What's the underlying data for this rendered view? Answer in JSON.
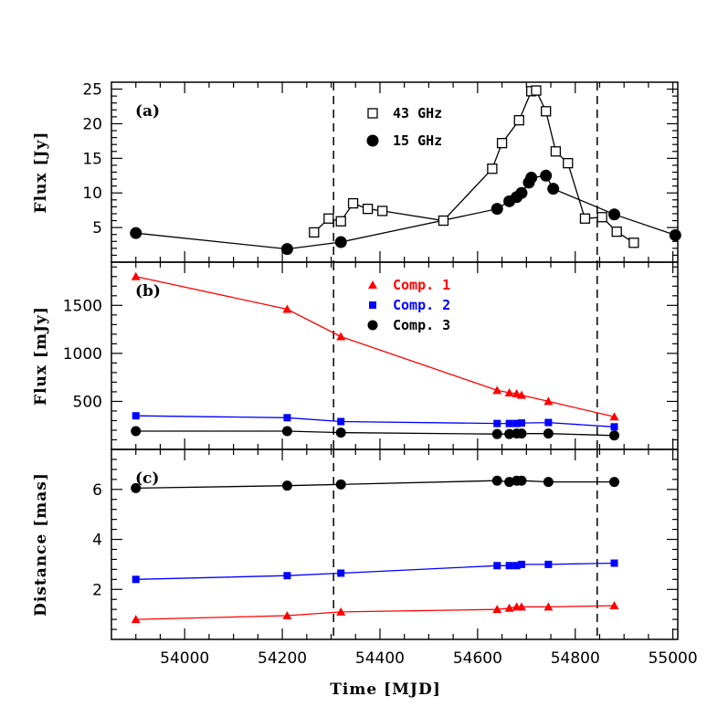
{
  "colors": {
    "black": "#000000",
    "red": "#ff0000",
    "blue": "#0000ff"
  },
  "chart_data": [
    {
      "type": "scatter",
      "panel_label": "(a)",
      "ylabel": "Flux [Jy]",
      "xlim": [
        53850,
        55010
      ],
      "ylim": [
        0,
        26
      ],
      "yticks": [
        5,
        10,
        15,
        20,
        25
      ],
      "legend_placement": "top-center",
      "series": [
        {
          "name": "43 GHz",
          "marker": "square-open",
          "color": "#000000",
          "x": [
            54265,
            54295,
            54320,
            54345,
            54375,
            54405,
            54530,
            54630,
            54650,
            54685,
            54710,
            54720,
            54740,
            54760,
            54785,
            54820,
            54855,
            54885,
            54920
          ],
          "y": [
            4.3,
            6.3,
            5.9,
            8.5,
            7.7,
            7.4,
            6.0,
            13.5,
            17.2,
            20.5,
            24.7,
            24.8,
            21.8,
            16.0,
            14.3,
            6.3,
            6.5,
            4.4,
            2.8
          ]
        },
        {
          "name": "15 GHz",
          "marker": "circle",
          "color": "#000000",
          "x": [
            53900,
            54210,
            54320,
            54640,
            54665,
            54680,
            54690,
            54705,
            54710,
            54740,
            54755,
            54880,
            55005
          ],
          "y": [
            4.2,
            1.9,
            2.9,
            7.7,
            8.8,
            9.4,
            10.0,
            11.5,
            12.2,
            12.5,
            10.6,
            6.9,
            3.9
          ]
        }
      ],
      "vlines": [
        54305,
        54845
      ]
    },
    {
      "type": "line",
      "panel_label": "(b)",
      "ylabel": "Flux [mJy]",
      "xlim": [
        53850,
        55010
      ],
      "ylim": [
        0,
        1950
      ],
      "yticks": [
        500,
        1000,
        1500
      ],
      "legend_placement": "top-center",
      "series": [
        {
          "name": "Comp. 1",
          "marker": "triangle",
          "color": "#ff0000",
          "x": [
            53900,
            54210,
            54320,
            54640,
            54665,
            54680,
            54690,
            54745,
            54880
          ],
          "y": [
            1800,
            1460,
            1175,
            615,
            590,
            580,
            565,
            500,
            340
          ]
        },
        {
          "name": "Comp. 2",
          "marker": "square",
          "color": "#0000ff",
          "x": [
            53900,
            54210,
            54320,
            54640,
            54665,
            54680,
            54690,
            54745,
            54880
          ],
          "y": [
            350,
            330,
            290,
            270,
            270,
            270,
            275,
            280,
            235
          ]
        },
        {
          "name": "Comp. 3",
          "marker": "circle",
          "color": "#000000",
          "x": [
            53900,
            54210,
            54320,
            54640,
            54665,
            54680,
            54690,
            54745,
            54880
          ],
          "y": [
            190,
            190,
            175,
            160,
            160,
            165,
            165,
            165,
            145
          ]
        }
      ],
      "vlines": [
        54305,
        54845
      ]
    },
    {
      "type": "line",
      "panel_label": "(c)",
      "ylabel": "Distance [mas]",
      "xlabel": "Time [MJD]",
      "xlim": [
        53850,
        55010
      ],
      "ylim": [
        0,
        7.6
      ],
      "yticks": [
        2,
        4,
        6
      ],
      "xticks": [
        54000,
        54200,
        54400,
        54600,
        54800,
        55000
      ],
      "series": [
        {
          "name": "Comp. 1",
          "marker": "triangle",
          "color": "#ff0000",
          "x": [
            53900,
            54210,
            54320,
            54640,
            54665,
            54680,
            54690,
            54745,
            54880
          ],
          "y": [
            0.8,
            0.95,
            1.1,
            1.2,
            1.25,
            1.3,
            1.3,
            1.3,
            1.35
          ]
        },
        {
          "name": "Comp. 2",
          "marker": "square",
          "color": "#0000ff",
          "x": [
            53900,
            54210,
            54320,
            54640,
            54665,
            54680,
            54690,
            54745,
            54880
          ],
          "y": [
            2.4,
            2.55,
            2.65,
            2.95,
            2.95,
            2.95,
            3.0,
            3.0,
            3.05
          ]
        },
        {
          "name": "Comp. 3",
          "marker": "circle",
          "color": "#000000",
          "x": [
            53900,
            54210,
            54320,
            54640,
            54665,
            54680,
            54690,
            54745,
            54880
          ],
          "y": [
            6.05,
            6.15,
            6.2,
            6.35,
            6.3,
            6.35,
            6.35,
            6.3,
            6.3
          ]
        }
      ],
      "vlines": [
        54305,
        54845
      ]
    }
  ]
}
